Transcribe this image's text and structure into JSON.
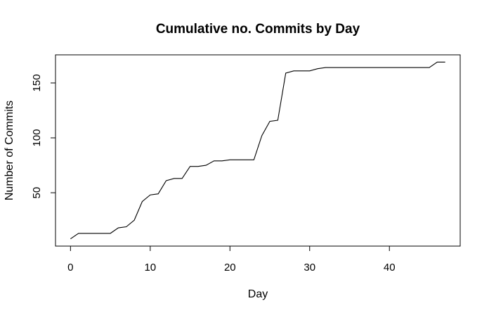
{
  "chart_data": {
    "type": "line",
    "title": "Cumulative no. Commits by Day",
    "xlabel": "Day",
    "ylabel": "Number of Commits",
    "xlim": [
      -1.88,
      48.88
    ],
    "ylim": [
      1.4,
      175.6
    ],
    "xticks": [
      0,
      10,
      20,
      30,
      40
    ],
    "yticks": [
      50,
      100,
      150
    ],
    "grid": false,
    "legend": "none",
    "series": [
      {
        "x": [
          0,
          1,
          2,
          3,
          4,
          5,
          6,
          7,
          8,
          9,
          10,
          11,
          12,
          13,
          14,
          15,
          16,
          17,
          18,
          19,
          20,
          21,
          22,
          23,
          24,
          25,
          26,
          27,
          28,
          29,
          30,
          31,
          32,
          33,
          34,
          35,
          36,
          37,
          38,
          39,
          40,
          41,
          42,
          43,
          44,
          45,
          46,
          47
        ],
        "y": [
          8,
          13,
          13,
          13,
          13,
          13,
          18,
          19,
          25,
          42,
          48,
          49,
          61,
          63,
          63,
          74,
          74,
          75,
          79,
          79,
          80,
          80,
          80,
          80,
          102,
          115,
          116,
          159,
          161,
          161,
          161,
          163,
          164,
          164,
          164,
          164,
          164,
          164,
          164,
          164,
          164,
          164,
          164,
          164,
          164,
          164,
          169,
          169
        ]
      }
    ]
  }
}
